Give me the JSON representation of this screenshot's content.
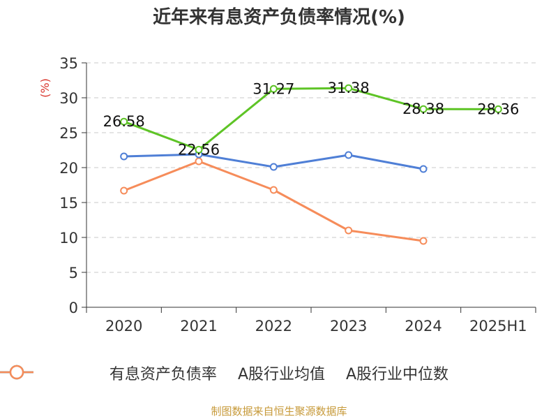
{
  "chart_data": {
    "type": "line",
    "title": "近年来有息资产负债率情况(%)",
    "ylabel": "(%)",
    "xlabel": "",
    "ylim": [
      0,
      35
    ],
    "yticks": [
      0,
      5,
      10,
      15,
      20,
      25,
      30,
      35
    ],
    "categories": [
      "2020",
      "2021",
      "2022",
      "2023",
      "2024",
      "2025H1"
    ],
    "series": [
      {
        "name": "有息资产负债率",
        "color": "#5ec426",
        "values": [
          26.58,
          22.56,
          31.27,
          31.38,
          28.38,
          28.36
        ],
        "labels": [
          "26.58",
          "22.56",
          "31.27",
          "31.38",
          "28.38",
          "28.36"
        ]
      },
      {
        "name": "A股行业均值",
        "color": "#4f7fd6",
        "values": [
          21.6,
          21.9,
          20.1,
          21.8,
          19.8,
          null
        ]
      },
      {
        "name": "A股行业中位数",
        "color": "#f68c5a",
        "values": [
          16.7,
          20.9,
          16.8,
          11.0,
          9.5,
          null
        ]
      }
    ],
    "grid": true,
    "legend_position": "bottom"
  },
  "source": "制图数据来自恒生聚源数据库"
}
